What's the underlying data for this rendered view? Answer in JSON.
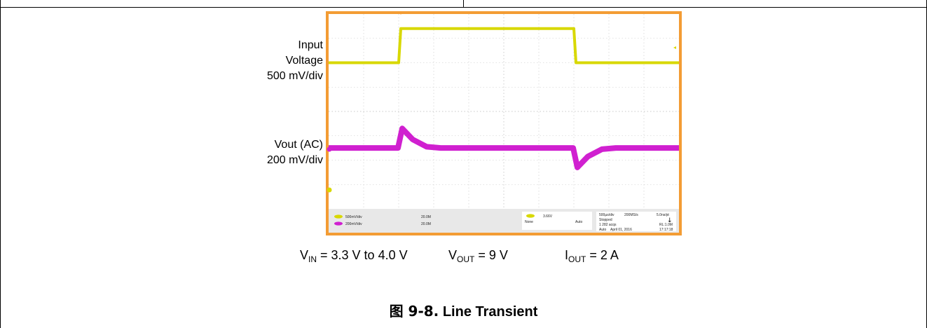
{
  "colors": {
    "frame": "#f39c34",
    "screen_bg": "#ffffff",
    "grid": "#c8c8c8",
    "ch1": "#d8d800",
    "ch2": "#d020d0",
    "panel_bg": "#e8e8e8"
  },
  "labels": {
    "ch1_line1": "Input",
    "ch1_line2": "Voltage",
    "ch1_line3": "500 mV/div",
    "ch2_line1": "Vout (AC)",
    "ch2_line2": "200 mV/div"
  },
  "conditions": {
    "vin_sym": "V",
    "vin_sub": "IN",
    "vin_val": " = 3.3 V to 4.0 V",
    "vout_sym": "V",
    "vout_sub": "OUT",
    "vout_val": " = 9 V",
    "iout_sym": "I",
    "iout_sub": "OUT",
    "iout_val": " = 2 A"
  },
  "caption": {
    "number": "图 9-8.",
    "title": "Line Transient"
  },
  "scope_panel": {
    "ch1_scale": "500mV/div",
    "ch1_bw": "20.0M",
    "ch2_scale": "200mV/div",
    "ch2_bw": "20.0M",
    "trigger_level": "3.66V",
    "trigger_none": "None",
    "trigger_mode": "Auto",
    "timebase": "500µs/div",
    "sample_rate": "200MS/s",
    "pt_rate": "5.0ns/pt",
    "state": "Stopped",
    "acqs": "1 282 acqs",
    "record": "RL:1.0M",
    "acq_mode": "Auto",
    "date": "April 01, 2016",
    "time": "17:17:18"
  },
  "chart_data": {
    "type": "line",
    "title": "Line Transient",
    "xlabel": "",
    "ylabel": "",
    "x_unit": "ms",
    "xlim": [
      0,
      5
    ],
    "divisions": {
      "x": 10,
      "y": 8
    },
    "grid": true,
    "series": [
      {
        "name": "Input Voltage",
        "scale": "500 mV/div",
        "x": [
          0,
          1.0,
          1.03,
          3.5,
          3.53,
          5.0
        ],
        "y": [
          3.3,
          3.3,
          4.0,
          4.0,
          3.3,
          3.3
        ]
      },
      {
        "name": "Vout (AC)",
        "scale": "200 mV/div",
        "x": [
          0,
          0.99,
          1.05,
          1.2,
          1.4,
          1.6,
          3.49,
          3.55,
          3.7,
          3.9,
          4.1,
          5.0
        ],
        "y": [
          0,
          0,
          0.16,
          0.07,
          0.01,
          0,
          0,
          -0.16,
          -0.07,
          -0.01,
          0,
          0
        ]
      }
    ]
  }
}
